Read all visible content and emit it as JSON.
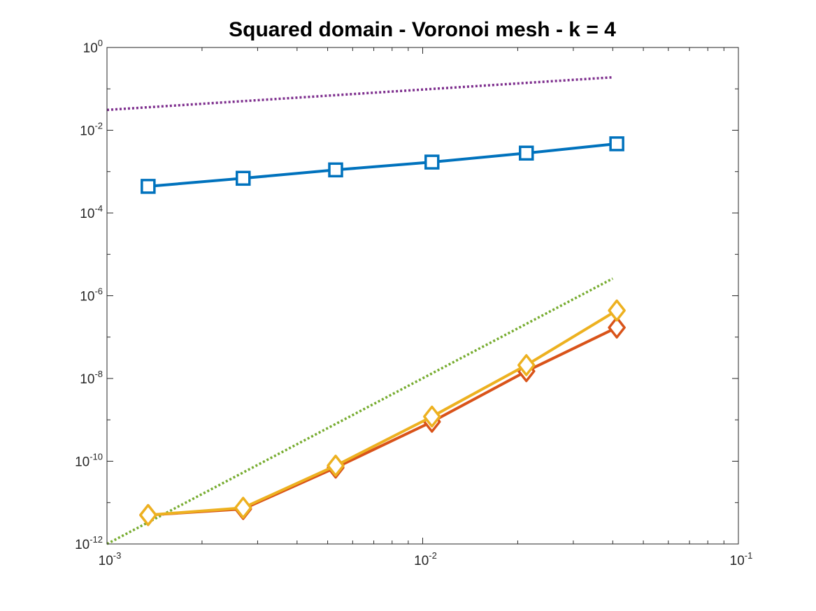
{
  "chart_data": {
    "type": "line",
    "title": "Squared domain - Voronoi mesh - k = 4",
    "xlabel": "",
    "ylabel": "",
    "xscale": "log",
    "yscale": "log",
    "xlim": [
      0.001,
      0.1
    ],
    "ylim": [
      1e-12,
      1
    ],
    "grid": false,
    "box": true,
    "x_ticks": [
      {
        "base": "10",
        "exp": "-3"
      },
      {
        "base": "10",
        "exp": "-2"
      },
      {
        "base": "10",
        "exp": "-1"
      }
    ],
    "y_ticks": [
      {
        "base": "10",
        "exp": "0"
      },
      {
        "base": "10",
        "exp": "-2"
      },
      {
        "base": "10",
        "exp": "-4"
      },
      {
        "base": "10",
        "exp": "-6"
      },
      {
        "base": "10",
        "exp": "-8"
      },
      {
        "base": "10",
        "exp": "-10"
      },
      {
        "base": "10",
        "exp": "-12"
      }
    ],
    "series": [
      {
        "color": "#7E2F8E",
        "style": "dotted",
        "marker": "none",
        "x": [
          0.001,
          0.04
        ],
        "y": [
          0.031,
          0.19
        ]
      },
      {
        "color": "#0072BD",
        "style": "solid",
        "marker": "square",
        "x": [
          0.00135,
          0.0027,
          0.0053,
          0.0107,
          0.0213,
          0.0412
        ],
        "y": [
          0.00044,
          0.00069,
          0.0011,
          0.0017,
          0.0028,
          0.0047
        ]
      },
      {
        "color": "#77AC30",
        "style": "dotted",
        "marker": "none",
        "x": [
          0.001,
          0.04
        ],
        "y": [
          1e-12,
          2.6e-06
        ]
      },
      {
        "color": "#D95319",
        "style": "solid",
        "marker": "diamond",
        "x": [
          0.00135,
          0.0027,
          0.0053,
          0.0107,
          0.0213,
          0.0412
        ],
        "y": [
          5e-12,
          7e-12,
          7e-11,
          9e-10,
          1.5e-08,
          1.7e-07
        ]
      },
      {
        "color": "#EDB120",
        "style": "solid",
        "marker": "diamond",
        "x": [
          0.00135,
          0.0027,
          0.0053,
          0.0107,
          0.0213,
          0.0412
        ],
        "y": [
          5e-12,
          7.5e-12,
          7.8e-11,
          1.2e-09,
          2.1e-08,
          4.4e-07
        ]
      }
    ]
  }
}
